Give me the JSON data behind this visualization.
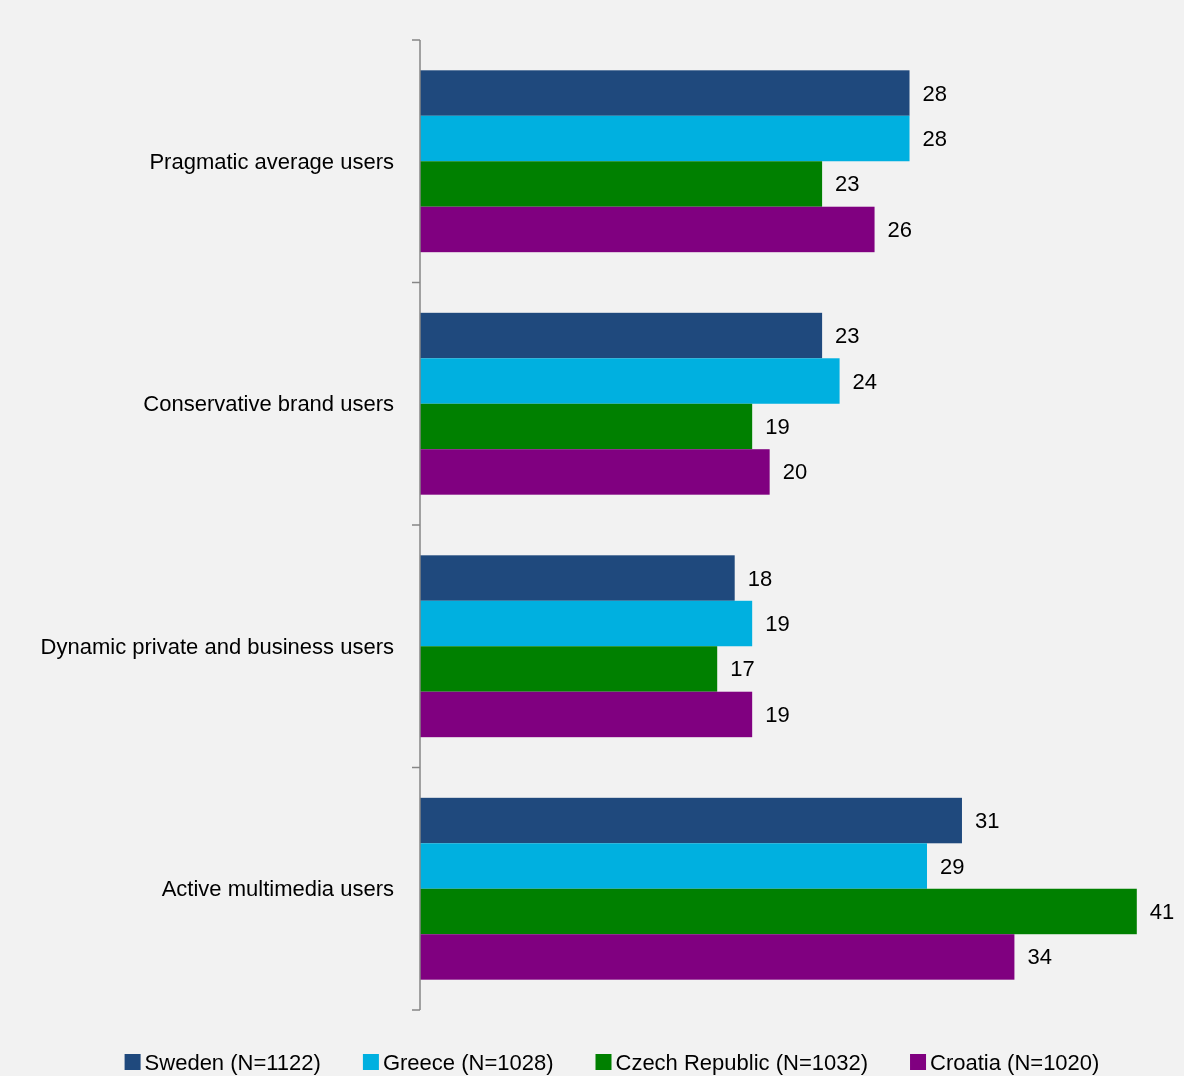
{
  "chart_data": {
    "type": "bar",
    "orientation": "horizontal",
    "categories": [
      "Pragmatic average users",
      "Conservative brand users",
      "Dynamic private and business users",
      "Active multimedia users"
    ],
    "series": [
      {
        "name": "Sweden (N=1122)",
        "color": "#1f497d",
        "values": [
          28,
          23,
          18,
          31
        ]
      },
      {
        "name": "Greece (N=1028)",
        "color": "#00b0e0",
        "values": [
          28,
          24,
          19,
          29
        ]
      },
      {
        "name": "Czech Republic (N=1032)",
        "color": "#008000",
        "values": [
          23,
          19,
          17,
          41
        ]
      },
      {
        "name": "Croatia (N=1020)",
        "color": "#800080",
        "values": [
          26,
          20,
          19,
          34
        ]
      }
    ],
    "xlim": [
      0,
      43.7
    ],
    "tick_labels": "y",
    "data_labels": true,
    "legend": "bottom"
  }
}
